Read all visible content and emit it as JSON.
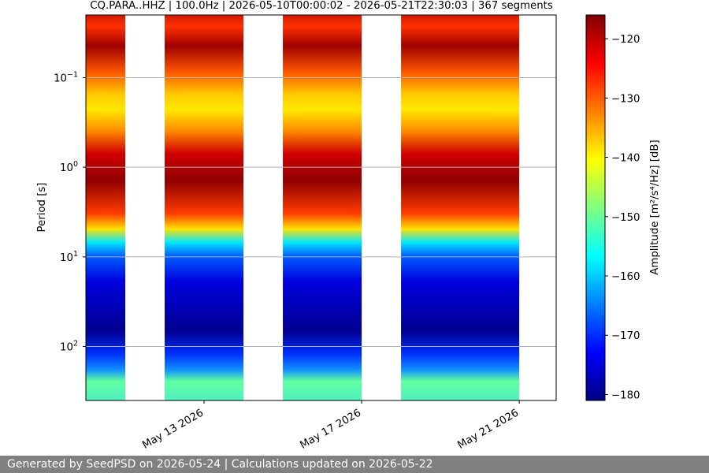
{
  "chart_data": {
    "type": "heatmap",
    "title": "CQ.PARA..HHZ | 100.0Hz | 2026-05-10T00:00:02 - 2026-05-21T22:30:03 | 367 segments",
    "xlabel": "",
    "ylabel": "Period [s]",
    "x_range": [
      "2026-05-10T00:00:02",
      "2026-05-21T22:30:03"
    ],
    "x_ticks": [
      "May 13 2026",
      "May 17 2026",
      "May 21 2026"
    ],
    "y_scale": "log",
    "y_range": [
      0.02,
      400
    ],
    "y_ticks": [
      {
        "value": 0.1,
        "base": "10",
        "exp": "−1"
      },
      {
        "value": 1,
        "base": "10",
        "exp": "0"
      },
      {
        "value": 10,
        "base": "10",
        "exp": "1"
      },
      {
        "value": 100,
        "base": "10",
        "exp": "2"
      }
    ],
    "grid": "horizontal",
    "colormap": "jet",
    "colorbar": {
      "label": "Amplitude [m²/s⁴/Hz] [dB]",
      "range": [
        -181,
        -116
      ],
      "ticks": [
        "−120",
        "−130",
        "−140",
        "−150",
        "−160",
        "−170",
        "−180"
      ]
    },
    "data_blocks": [
      {
        "start": "2026-05-10",
        "end": "2026-05-11"
      },
      {
        "start": "2026-05-12",
        "end": "2026-05-14"
      },
      {
        "start": "2026-05-15",
        "end": "2026-05-17"
      },
      {
        "start": "2026-05-18",
        "end": "2026-05-21"
      }
    ]
  },
  "footer": "Generated by SeedPSD on 2026-05-24 | Calculations updated on 2026-05-22"
}
